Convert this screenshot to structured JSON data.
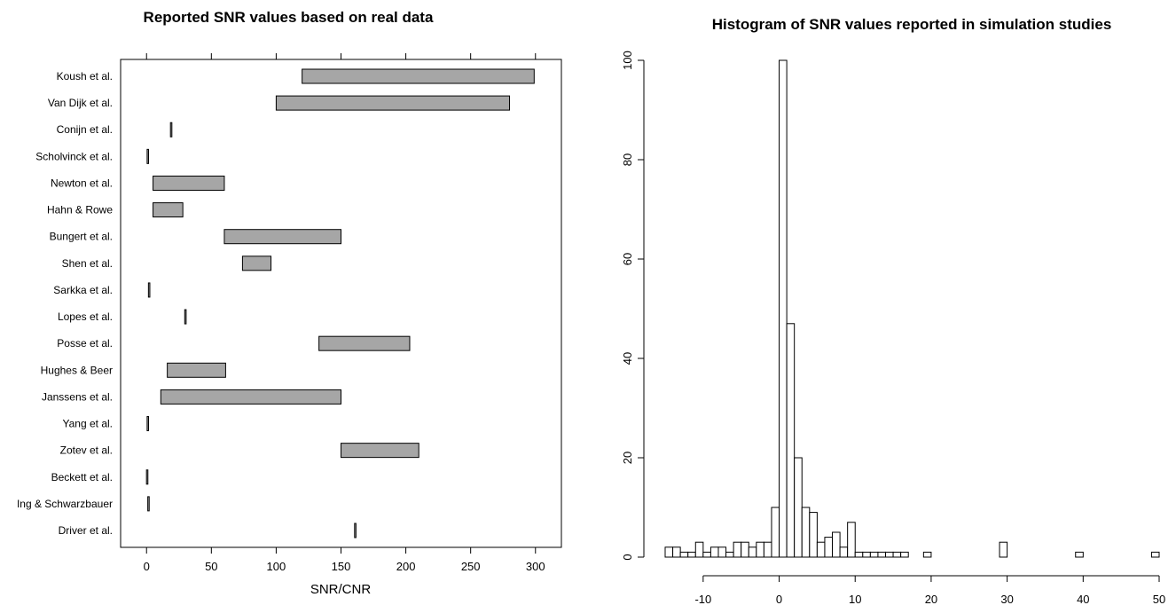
{
  "chart_data": [
    {
      "type": "bar",
      "subtype": "horizontal-range",
      "title": "Reported SNR values based on real data",
      "xlabel": "SNR/CNR",
      "ylabel": "",
      "xlim": [
        -20,
        320
      ],
      "xticks": [
        0,
        50,
        100,
        150,
        200,
        250,
        300
      ],
      "xtick_labels": [
        "0",
        "50",
        "100",
        "150",
        "200",
        "250",
        "300"
      ],
      "bar_color": "#a6a6a6",
      "grid": false,
      "studies": [
        {
          "label": "Koush et al.",
          "low": 120,
          "high": 299
        },
        {
          "label": "Van Dijk et al.",
          "low": 100,
          "high": 280
        },
        {
          "label": "Conijn et al.",
          "low": 19,
          "high": 19
        },
        {
          "label": "Scholvinck et al.",
          "low": 1,
          "high": 1
        },
        {
          "label": "Newton et al.",
          "low": 5,
          "high": 60
        },
        {
          "label": "Hahn & Rowe",
          "low": 5,
          "high": 28
        },
        {
          "label": "Bungert et al.",
          "low": 60,
          "high": 150
        },
        {
          "label": "Shen et al.",
          "low": 74,
          "high": 96
        },
        {
          "label": "Sarkka et al.",
          "low": 2,
          "high": 2
        },
        {
          "label": "Lopes et al.",
          "low": 30,
          "high": 30
        },
        {
          "label": "Posse et al.",
          "low": 133,
          "high": 203
        },
        {
          "label": "Hughes & Beer",
          "low": 16,
          "high": 61
        },
        {
          "label": "Janssens et al.",
          "low": 11,
          "high": 150
        },
        {
          "label": "Yang et al.",
          "low": 1,
          "high": 1
        },
        {
          "label": "Zotev et al.",
          "low": 150,
          "high": 210
        },
        {
          "label": "Beckett et al.",
          "low": 0.5,
          "high": 0.5
        },
        {
          "label": "Ing & Schwarzbauer",
          "low": 1.5,
          "high": 1.5
        },
        {
          "label": "Driver et al.",
          "low": 161,
          "high": 161
        }
      ]
    },
    {
      "type": "bar",
      "subtype": "histogram",
      "title": "Histogram of SNR values reported in simulation studies",
      "xlabel": "",
      "ylabel": "",
      "bin_width": 1,
      "xlim": [
        -15,
        50
      ],
      "ylim": [
        0,
        100
      ],
      "xticks": [
        -10,
        0,
        10,
        20,
        30,
        40,
        50
      ],
      "xtick_labels": [
        "-10",
        "0",
        "10",
        "20",
        "30",
        "40",
        "50"
      ],
      "yticks": [
        0,
        20,
        40,
        60,
        80,
        100
      ],
      "ytick_labels": [
        "0",
        "20",
        "40",
        "60",
        "80",
        "100"
      ],
      "bar_color": "#ffffff",
      "grid": false,
      "bin_starts": [
        -15,
        -14,
        -13,
        -12,
        -11,
        -10,
        -9,
        -8,
        -7,
        -6,
        -5,
        -4,
        -3,
        -2,
        -1,
        0,
        1,
        2,
        3,
        4,
        5,
        6,
        7,
        8,
        9,
        10,
        11,
        12,
        13,
        14,
        15,
        16,
        17,
        18,
        19,
        20,
        21,
        22,
        23,
        24,
        25,
        26,
        27,
        28,
        29,
        30,
        31,
        32,
        33,
        34,
        35,
        36,
        37,
        38,
        39,
        40,
        41,
        42,
        43,
        44,
        45,
        46,
        47,
        48,
        49
      ],
      "counts": [
        2,
        2,
        1,
        1,
        3,
        1,
        2,
        2,
        1,
        3,
        3,
        2,
        3,
        3,
        10,
        100,
        47,
        20,
        10,
        9,
        3,
        4,
        5,
        2,
        7,
        1,
        1,
        1,
        1,
        1,
        1,
        1,
        0,
        0,
        1,
        0,
        0,
        0,
        0,
        0,
        0,
        0,
        0,
        0,
        3,
        0,
        0,
        0,
        0,
        0,
        0,
        0,
        0,
        0,
        1,
        0,
        0,
        0,
        0,
        0,
        0,
        0,
        0,
        0,
        1
      ]
    }
  ]
}
